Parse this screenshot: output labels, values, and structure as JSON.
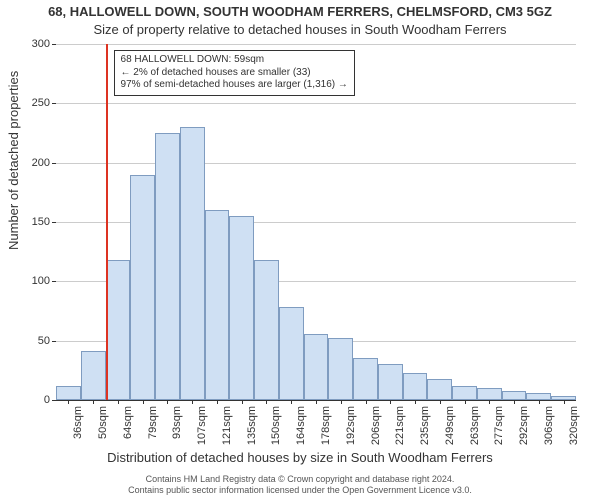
{
  "title_main": "68, HALLOWELL DOWN, SOUTH WOODHAM FERRERS, CHELMSFORD, CM3 5GZ",
  "title_sub": "Size of property relative to detached houses in South Woodham Ferrers",
  "ylabel": "Number of detached properties",
  "xlabel": "Distribution of detached houses by size in South Woodham Ferrers",
  "footer_line1": "Contains HM Land Registry data © Crown copyright and database right 2024.",
  "footer_line2": "Contains public sector information licensed under the Open Government Licence v3.0.",
  "annotation": {
    "line1": "68 HALLOWELL DOWN: 59sqm",
    "line2": "← 2% of detached houses are smaller (33)",
    "line3": "97% of semi-detached houses are larger (1,316) →"
  },
  "chart": {
    "type": "histogram",
    "background_color": "#ffffff",
    "grid_color": "#cccccc",
    "bar_fill": "#cfe0f3",
    "bar_edge": "#7f9cc0",
    "refline_color": "#dd3322",
    "font_size_axis": 11,
    "font_size_label": 13,
    "ylim": [
      0,
      300
    ],
    "yticks": [
      0,
      50,
      100,
      150,
      200,
      250,
      300
    ],
    "xticks": [
      "36sqm",
      "50sqm",
      "64sqm",
      "79sqm",
      "93sqm",
      "107sqm",
      "121sqm",
      "135sqm",
      "150sqm",
      "164sqm",
      "178sqm",
      "192sqm",
      "206sqm",
      "221sqm",
      "235sqm",
      "249sqm",
      "263sqm",
      "277sqm",
      "292sqm",
      "306sqm",
      "320sqm"
    ],
    "refline_at_bin": 2,
    "values": [
      12,
      41,
      118,
      190,
      225,
      230,
      160,
      155,
      118,
      78,
      56,
      52,
      35,
      30,
      23,
      18,
      12,
      10,
      8,
      6,
      3
    ]
  }
}
